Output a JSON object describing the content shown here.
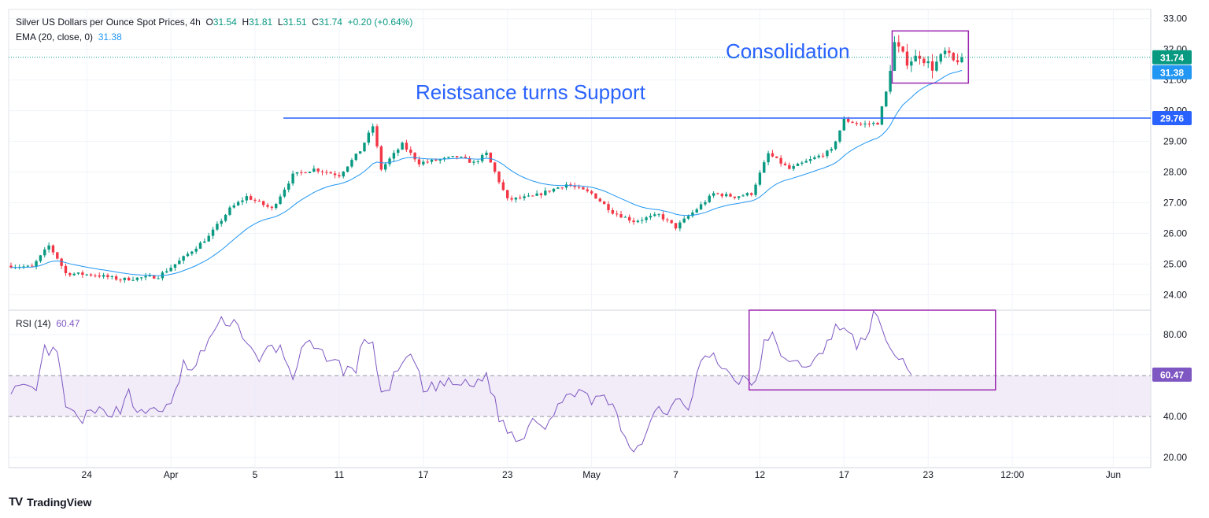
{
  "legend": {
    "symbol": "Silver US Dollars per Ounce Spot Prices, 4h",
    "o_label": "O",
    "o": "31.54",
    "h_label": "H",
    "h": "31.81",
    "l_label": "L",
    "l": "31.51",
    "c_label": "C",
    "c": "31.74",
    "change": "+0.20 (+0.64%)",
    "ema_label": "EMA (20, close, 0)",
    "ema_value": "31.38",
    "rsi_label": "RSI (14)",
    "rsi_value": "60.47"
  },
  "brand": {
    "logo": "TV",
    "name": "TradingView"
  },
  "colors": {
    "up": "#089981",
    "down": "#f23645",
    "ema": "#2196f3",
    "rsi": "#7e57c2",
    "band": "#ede7f6",
    "line": "#2962ff",
    "box": "#9c27b0"
  },
  "chart_data": {
    "type": "candlestick",
    "x_ticks": [
      "24",
      "Apr",
      "5",
      "11",
      "17",
      "23",
      "May",
      "7",
      "12",
      "17",
      "23",
      "12:00",
      "Jun"
    ],
    "price": {
      "ylim": [
        23.5,
        33.3
      ],
      "ticks": [
        "33.00",
        "32.00",
        "31.00",
        "30.00",
        "29.00",
        "28.00",
        "27.00",
        "26.00",
        "25.00",
        "24.00"
      ],
      "last_price": "31.74",
      "ema_last": "31.38",
      "support_level": "29.76",
      "anchors": [
        [
          0,
          24.95
        ],
        [
          5,
          24.9
        ],
        [
          9,
          25.6
        ],
        [
          11,
          25.2
        ],
        [
          13,
          24.7
        ],
        [
          20,
          24.65
        ],
        [
          26,
          24.5
        ],
        [
          35,
          24.6
        ],
        [
          40,
          25.1
        ],
        [
          47,
          25.9
        ],
        [
          52,
          26.8
        ],
        [
          56,
          27.2
        ],
        [
          62,
          26.8
        ],
        [
          67,
          27.9
        ],
        [
          72,
          28.1
        ],
        [
          78,
          27.9
        ],
        [
          83,
          28.7
        ],
        [
          86,
          29.5
        ],
        [
          88,
          28.1
        ],
        [
          93,
          28.9
        ],
        [
          97,
          28.3
        ],
        [
          102,
          28.4
        ],
        [
          106,
          28.5
        ],
        [
          110,
          28.3
        ],
        [
          113,
          28.6
        ],
        [
          118,
          27.1
        ],
        [
          124,
          27.2
        ],
        [
          128,
          27.4
        ],
        [
          132,
          27.6
        ],
        [
          138,
          27.3
        ],
        [
          143,
          26.7
        ],
        [
          148,
          26.4
        ],
        [
          154,
          26.6
        ],
        [
          158,
          26.2
        ],
        [
          163,
          26.8
        ],
        [
          167,
          27.3
        ],
        [
          172,
          27.2
        ],
        [
          176,
          27.3
        ],
        [
          180,
          28.6
        ],
        [
          185,
          28.1
        ],
        [
          190,
          28.4
        ],
        [
          195,
          28.7
        ],
        [
          198,
          29.7
        ],
        [
          202,
          29.55
        ],
        [
          206,
          29.6
        ],
        [
          208,
          30.6
        ],
        [
          210,
          32.2
        ],
        [
          213,
          31.6
        ],
        [
          216,
          31.8
        ],
        [
          219,
          31.4
        ],
        [
          222,
          31.9
        ],
        [
          224,
          31.6
        ],
        [
          226,
          31.74
        ]
      ],
      "box_range": [
        30.9,
        32.6
      ]
    },
    "rsi": {
      "ylim": [
        15,
        92
      ],
      "ticks": [
        "80.00",
        "60.00",
        "40.00",
        "20.00"
      ],
      "band": [
        40,
        60
      ],
      "last": "60.47",
      "anchors": [
        [
          0,
          54
        ],
        [
          6,
          52
        ],
        [
          8,
          73
        ],
        [
          11,
          70
        ],
        [
          13,
          45
        ],
        [
          16,
          38
        ],
        [
          20,
          42
        ],
        [
          26,
          43
        ],
        [
          28,
          54
        ],
        [
          30,
          40
        ],
        [
          34,
          44
        ],
        [
          38,
          44
        ],
        [
          41,
          66
        ],
        [
          43,
          61
        ],
        [
          47,
          78
        ],
        [
          50,
          86
        ],
        [
          53,
          87
        ],
        [
          56,
          77
        ],
        [
          59,
          65
        ],
        [
          61,
          74
        ],
        [
          64,
          73
        ],
        [
          67,
          60
        ],
        [
          70,
          76
        ],
        [
          73,
          71
        ],
        [
          76,
          69
        ],
        [
          79,
          63
        ],
        [
          82,
          63
        ],
        [
          84,
          79
        ],
        [
          86,
          76
        ],
        [
          88,
          49
        ],
        [
          91,
          59
        ],
        [
          94,
          68
        ],
        [
          96,
          67
        ],
        [
          98,
          52
        ],
        [
          102,
          56
        ],
        [
          106,
          56
        ],
        [
          110,
          55
        ],
        [
          113,
          61
        ],
        [
          116,
          40
        ],
        [
          118,
          33
        ],
        [
          121,
          28
        ],
        [
          124,
          40
        ],
        [
          127,
          36
        ],
        [
          130,
          46
        ],
        [
          133,
          49
        ],
        [
          135,
          56
        ],
        [
          138,
          45
        ],
        [
          141,
          51
        ],
        [
          144,
          40
        ],
        [
          146,
          28
        ],
        [
          148,
          24
        ],
        [
          151,
          32
        ],
        [
          154,
          47
        ],
        [
          156,
          40
        ],
        [
          158,
          51
        ],
        [
          161,
          45
        ],
        [
          164,
          68
        ],
        [
          167,
          69
        ],
        [
          170,
          62
        ],
        [
          173,
          58
        ],
        [
          177,
          56
        ],
        [
          179,
          75
        ],
        [
          181,
          79
        ],
        [
          185,
          65
        ],
        [
          189,
          66
        ],
        [
          193,
          70
        ],
        [
          196,
          86
        ],
        [
          199,
          80
        ],
        [
          201,
          75
        ],
        [
          203,
          78
        ],
        [
          205,
          90
        ],
        [
          207,
          82
        ],
        [
          210,
          70
        ],
        [
          212,
          67
        ],
        [
          214,
          60
        ]
      ],
      "box_range": [
        53,
        92
      ]
    },
    "annotations": {
      "support_label": "Reistsance turns Support",
      "box_label": "Consolidation"
    }
  }
}
